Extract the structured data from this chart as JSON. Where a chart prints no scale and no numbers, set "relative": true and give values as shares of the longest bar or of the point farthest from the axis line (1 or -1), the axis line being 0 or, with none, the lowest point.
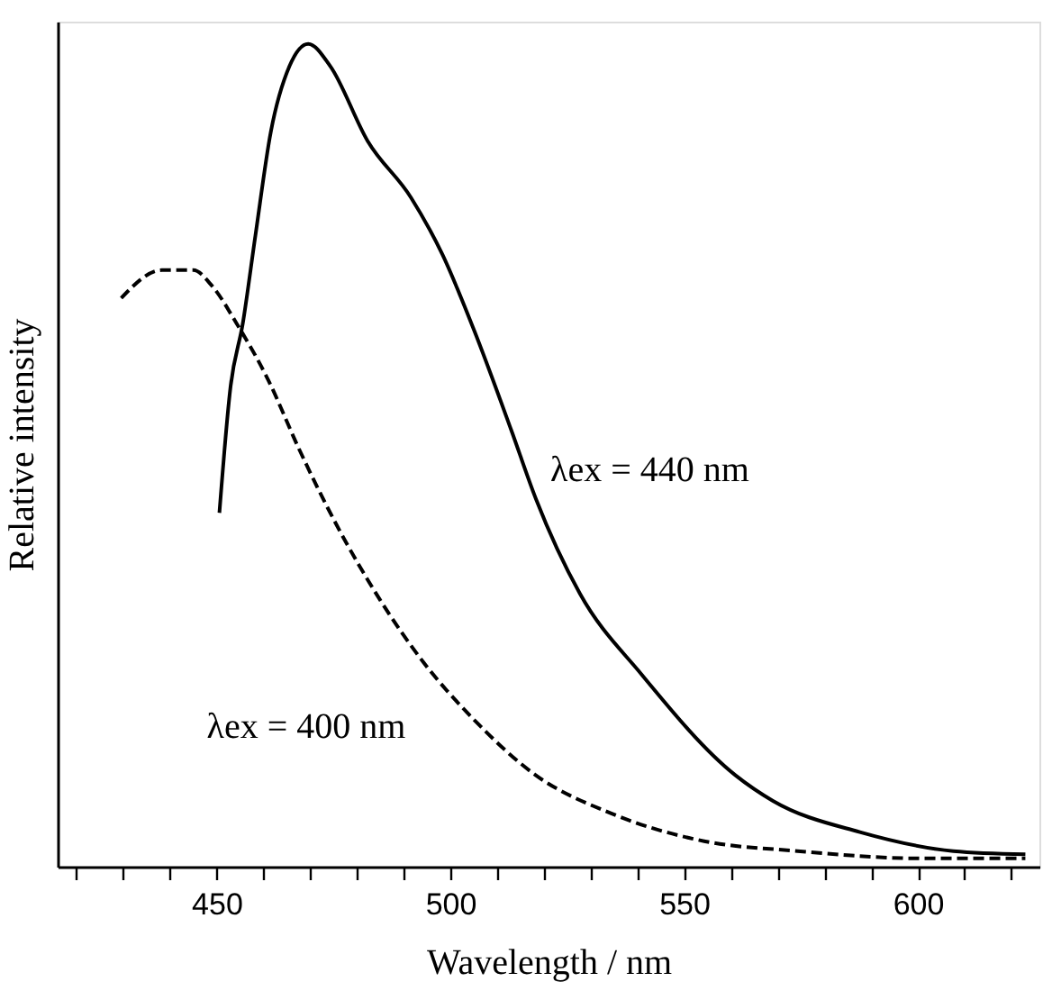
{
  "chart_data": {
    "type": "line",
    "relative": true,
    "xlabel": "Wavelength / nm",
    "ylabel": "Relative intensity",
    "xlim": [
      416,
      626
    ],
    "xticks": [
      {
        "value": 420,
        "label": null
      },
      {
        "value": 430,
        "label": null
      },
      {
        "value": 440,
        "label": null
      },
      450,
      {
        "value": 460,
        "label": null
      },
      {
        "value": 470,
        "label": null
      },
      {
        "value": 480,
        "label": null
      },
      {
        "value": 490,
        "label": null
      },
      500,
      {
        "value": 510,
        "label": null
      },
      {
        "value": 520,
        "label": null
      },
      {
        "value": 530,
        "label": null
      },
      {
        "value": 540,
        "label": null
      },
      550,
      {
        "value": 560,
        "label": null
      },
      {
        "value": 570,
        "label": null
      },
      {
        "value": 580,
        "label": null
      },
      {
        "value": 590,
        "label": null
      },
      600,
      {
        "value": 610,
        "label": null
      },
      {
        "value": 620,
        "label": null
      }
    ],
    "tick_labels": "x",
    "grid": false,
    "marker": "none",
    "series": [
      {
        "name": "λex = 440 nm",
        "color": "#000000",
        "line_style": "solid",
        "x": [
          450.6,
          453,
          455.6,
          458.3,
          461.6,
          465.6,
          469.6,
          474.3,
          482.3,
          491.6,
          498.3,
          505,
          513,
          518.3,
          527.7,
          541,
          561,
          569,
          587.6,
          607.6,
          623
        ],
        "values": [
          0.43,
          0.584,
          0.66,
          0.767,
          0.893,
          0.973,
          1.0,
          0.973,
          0.882,
          0.813,
          0.744,
          0.653,
          0.531,
          0.447,
          0.332,
          0.233,
          0.111,
          0.08,
          0.042,
          0.019,
          0.015
        ]
      },
      {
        "name": "λex = 400 nm",
        "color": "#000000",
        "line_style": "dashed",
        "x": [
          429.6,
          438.3,
          445,
          449,
          454.3,
          461,
          467.6,
          475.6,
          485,
          494.3,
          505,
          518.3,
          534.3,
          554.3,
          574.3,
          601,
          623
        ],
        "values": [
          0.691,
          0.725,
          0.725,
          0.706,
          0.66,
          0.592,
          0.508,
          0.416,
          0.324,
          0.248,
          0.179,
          0.111,
          0.065,
          0.031,
          0.019,
          0.01,
          0.01
        ]
      }
    ]
  }
}
